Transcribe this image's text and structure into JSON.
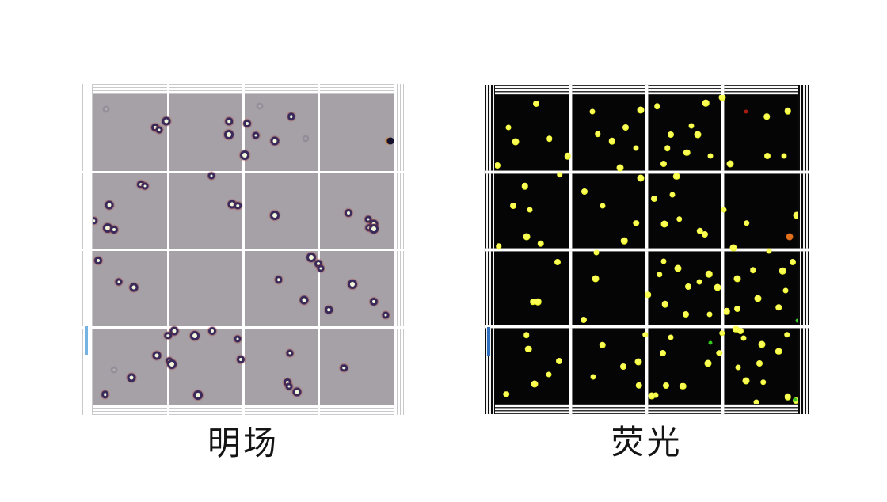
{
  "figure": {
    "background": "#ffffff",
    "grid_line_color": "#ffffff",
    "panels": [
      {
        "id": "brightfield",
        "label": "明场",
        "modality": "brightfield-microscopy",
        "tile_color": "#a6a1a7",
        "grid": {
          "rows": 4,
          "cols": 4,
          "line_color": "#ffffff"
        },
        "edge_artifact_color": "#74b3e3",
        "cell_ring_color": "#382b5c",
        "cell_center_color": "#f4f6da",
        "cells": [
          [
            20.7,
            10.8
          ],
          [
            22.0,
            11.5
          ],
          [
            24.6,
            8.7
          ],
          [
            45.3,
            8.7
          ],
          [
            45.3,
            13.1
          ],
          [
            51.3,
            9.5
          ],
          [
            54.2,
            13.3
          ],
          [
            60.5,
            15.1
          ],
          [
            66.0,
            7.2
          ],
          [
            50.5,
            19.7
          ],
          [
            16.0,
            29.0
          ],
          [
            17.3,
            29.7
          ],
          [
            5.5,
            35.6
          ],
          [
            0.5,
            40.8
          ],
          [
            5.0,
            43.1
          ],
          [
            7.1,
            43.6
          ],
          [
            39.5,
            26.4
          ],
          [
            46.3,
            35.4
          ],
          [
            48.2,
            35.9
          ],
          [
            60.5,
            39.0
          ],
          [
            85.1,
            38.2
          ],
          [
            91.6,
            40.3
          ],
          [
            93.5,
            41.8
          ],
          [
            91.9,
            43.1
          ],
          [
            93.5,
            43.3
          ],
          [
            1.8,
            53.6
          ],
          [
            8.6,
            60.5
          ],
          [
            13.6,
            62.3
          ],
          [
            61.8,
            59.7
          ],
          [
            72.5,
            52.6
          ],
          [
            74.9,
            54.6
          ],
          [
            75.7,
            56.2
          ],
          [
            70.2,
            66.2
          ],
          [
            78.5,
            69.5
          ],
          [
            86.4,
            61.3
          ],
          [
            93.5,
            66.9
          ],
          [
            97.4,
            71.3
          ],
          [
            27.2,
            76.2
          ],
          [
            25.1,
            77.7
          ],
          [
            34.0,
            77.9
          ],
          [
            39.8,
            76.2
          ],
          [
            48.2,
            78.7
          ],
          [
            21.2,
            84.1
          ],
          [
            25.4,
            85.9
          ],
          [
            26.4,
            86.9
          ],
          [
            49.2,
            85.4
          ],
          [
            65.4,
            83.3
          ],
          [
            12.8,
            91.3
          ],
          [
            4.2,
            96.7
          ],
          [
            35.1,
            96.9
          ],
          [
            64.7,
            92.8
          ],
          [
            65.2,
            94.1
          ],
          [
            67.8,
            95.9
          ],
          [
            83.5,
            88.2
          ]
        ],
        "faint_cells": [
          [
            70.9,
            14.4
          ],
          [
            55.5,
            3.8
          ],
          [
            7.1,
            88.7
          ],
          [
            4.5,
            4.9
          ]
        ],
        "dark_particle": [
          99.0,
          15.1
        ]
      },
      {
        "id": "fluorescence",
        "label": "荧光",
        "modality": "fluorescence-microscopy",
        "tile_color": "#050505",
        "grid": {
          "rows": 4,
          "cols": 4,
          "line_color": "#ffffff"
        },
        "edge_artifact_color": "#2f6fc0",
        "dot_color": "#eaf322",
        "dots": [
          [
            13.6,
            2.8
          ],
          [
            4.4,
            10.6
          ],
          [
            6.8,
            15.2
          ],
          [
            18.0,
            14.2
          ],
          [
            24.0,
            19.8
          ],
          [
            0.8,
            22.7
          ],
          [
            32.1,
            5.4
          ],
          [
            48.0,
            4.9
          ],
          [
            33.9,
            12.6
          ],
          [
            38.6,
            14.9
          ],
          [
            43.1,
            10.6
          ],
          [
            46.5,
            17.3
          ],
          [
            41.3,
            23.7
          ],
          [
            53.5,
            3.6
          ],
          [
            69.5,
            2.6
          ],
          [
            58.0,
            12.9
          ],
          [
            64.8,
            10.1
          ],
          [
            66.8,
            12.9
          ],
          [
            56.9,
            17.3
          ],
          [
            63.2,
            18.6
          ],
          [
            55.6,
            22.2
          ],
          [
            71.0,
            19.8
          ],
          [
            74.9,
            0.8
          ],
          [
            89.6,
            7.0
          ],
          [
            96.6,
            5.2
          ],
          [
            89.8,
            19.8
          ],
          [
            95.3,
            19.8
          ],
          [
            77.5,
            22.4
          ],
          [
            21.4,
            25.8
          ],
          [
            9.9,
            29.6
          ],
          [
            6.0,
            35.8
          ],
          [
            11.5,
            37.1
          ],
          [
            10.4,
            45.9
          ],
          [
            1.3,
            49.0
          ],
          [
            15.1,
            48.2
          ],
          [
            29.5,
            31.2
          ],
          [
            35.5,
            35.8
          ],
          [
            48.0,
            26.8
          ],
          [
            46.5,
            41.5
          ],
          [
            59.8,
            26.3
          ],
          [
            52.5,
            33.5
          ],
          [
            58.5,
            32.2
          ],
          [
            55.9,
            41.8
          ],
          [
            60.8,
            40.2
          ],
          [
            67.6,
            44.1
          ],
          [
            69.2,
            45.1
          ],
          [
            75.5,
            37.1
          ],
          [
            99.5,
            38.9
          ],
          [
            83.0,
            41.5
          ],
          [
            42.6,
            47.2
          ],
          [
            20.6,
            54.1
          ],
          [
            33.4,
            51.0
          ],
          [
            33.2,
            59.5
          ],
          [
            12.5,
            67.0
          ],
          [
            14.1,
            67.0
          ],
          [
            29.2,
            72.9
          ],
          [
            55.6,
            53.9
          ],
          [
            60.3,
            56.2
          ],
          [
            54.3,
            58.2
          ],
          [
            70.5,
            58.0
          ],
          [
            63.7,
            62.1
          ],
          [
            67.4,
            60.6
          ],
          [
            73.4,
            62.4
          ],
          [
            50.4,
            64.7
          ],
          [
            56.1,
            67.8
          ],
          [
            62.9,
            70.9
          ],
          [
            70.8,
            71.1
          ],
          [
            79.9,
            59.5
          ],
          [
            85.1,
            56.7
          ],
          [
            94.8,
            57.0
          ],
          [
            98.2,
            54.1
          ],
          [
            95.8,
            63.4
          ],
          [
            86.7,
            66.0
          ],
          [
            93.5,
            68.8
          ],
          [
            76.5,
            70.1
          ],
          [
            79.9,
            69.3
          ],
          [
            90.3,
            50.5
          ],
          [
            78.6,
            49.5
          ],
          [
            10.4,
            77.8
          ],
          [
            11.0,
            82.2
          ],
          [
            21.1,
            86.1
          ],
          [
            17.8,
            90.5
          ],
          [
            13.1,
            93.6
          ],
          [
            3.7,
            96.9
          ],
          [
            35.5,
            80.9
          ],
          [
            42.3,
            87.9
          ],
          [
            32.4,
            91.2
          ],
          [
            47.3,
            86.3
          ],
          [
            49.6,
            77.6
          ],
          [
            47.5,
            94.1
          ],
          [
            55.4,
            83.5
          ],
          [
            58.0,
            78.4
          ],
          [
            70.2,
            86.9
          ],
          [
            73.9,
            83.5
          ],
          [
            61.9,
            94.3
          ],
          [
            56.4,
            94.1
          ],
          [
            53.0,
            97.2
          ],
          [
            51.7,
            97.4
          ],
          [
            74.9,
            77.1
          ],
          [
            79.4,
            75.8
          ],
          [
            80.9,
            76.3
          ],
          [
            82.0,
            78.6
          ],
          [
            88.0,
            80.7
          ],
          [
            96.3,
            77.6
          ],
          [
            93.5,
            83.0
          ],
          [
            87.2,
            86.9
          ],
          [
            80.2,
            88.1
          ],
          [
            82.8,
            92.5
          ],
          [
            88.5,
            93.0
          ],
          [
            96.6,
            97.7
          ],
          [
            99.2,
            99.0
          ],
          [
            86.2,
            99.5
          ]
        ],
        "red_dot": [
          82.8,
          5.4
        ],
        "orange_dot": [
          97.1,
          45.9
        ],
        "green_dots": [
          [
            99.7,
            73.2
          ],
          [
            71.0,
            80.2
          ],
          [
            99.0,
            98.7
          ]
        ]
      }
    ]
  }
}
